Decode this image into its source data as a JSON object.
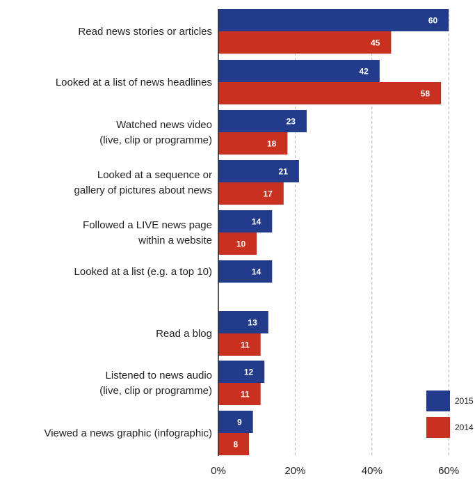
{
  "chart_data": {
    "type": "bar",
    "orientation": "horizontal",
    "categories": [
      [
        "Read news stories or articles"
      ],
      [
        "Looked at a list of news headlines"
      ],
      [
        "Watched news video",
        "(live, clip or programme)"
      ],
      [
        "Looked at a sequence or",
        "gallery of pictures about news"
      ],
      [
        "Followed a LIVE news page",
        "within a website"
      ],
      [
        "Looked at a list (e.g. a top 10)"
      ],
      [
        "Read a blog"
      ],
      [
        "Listened to news audio",
        "(live, clip or programme)"
      ],
      [
        "Viewed a news graphic (infographic)"
      ]
    ],
    "series": [
      {
        "name": "2015",
        "color": "#233b8b",
        "values": [
          60,
          42,
          23,
          21,
          14,
          14,
          13,
          12,
          9
        ]
      },
      {
        "name": "2014",
        "color": "#c8311f",
        "values": [
          45,
          58,
          18,
          17,
          10,
          null,
          11,
          11,
          8
        ]
      }
    ],
    "x_ticks": [
      "0%",
      "20%",
      "40%",
      "60%"
    ],
    "x_tick_values": [
      0,
      20,
      40,
      60
    ],
    "xlim": [
      0,
      60
    ],
    "grid": "dashed vertical",
    "legend_position": "bottom-right"
  }
}
